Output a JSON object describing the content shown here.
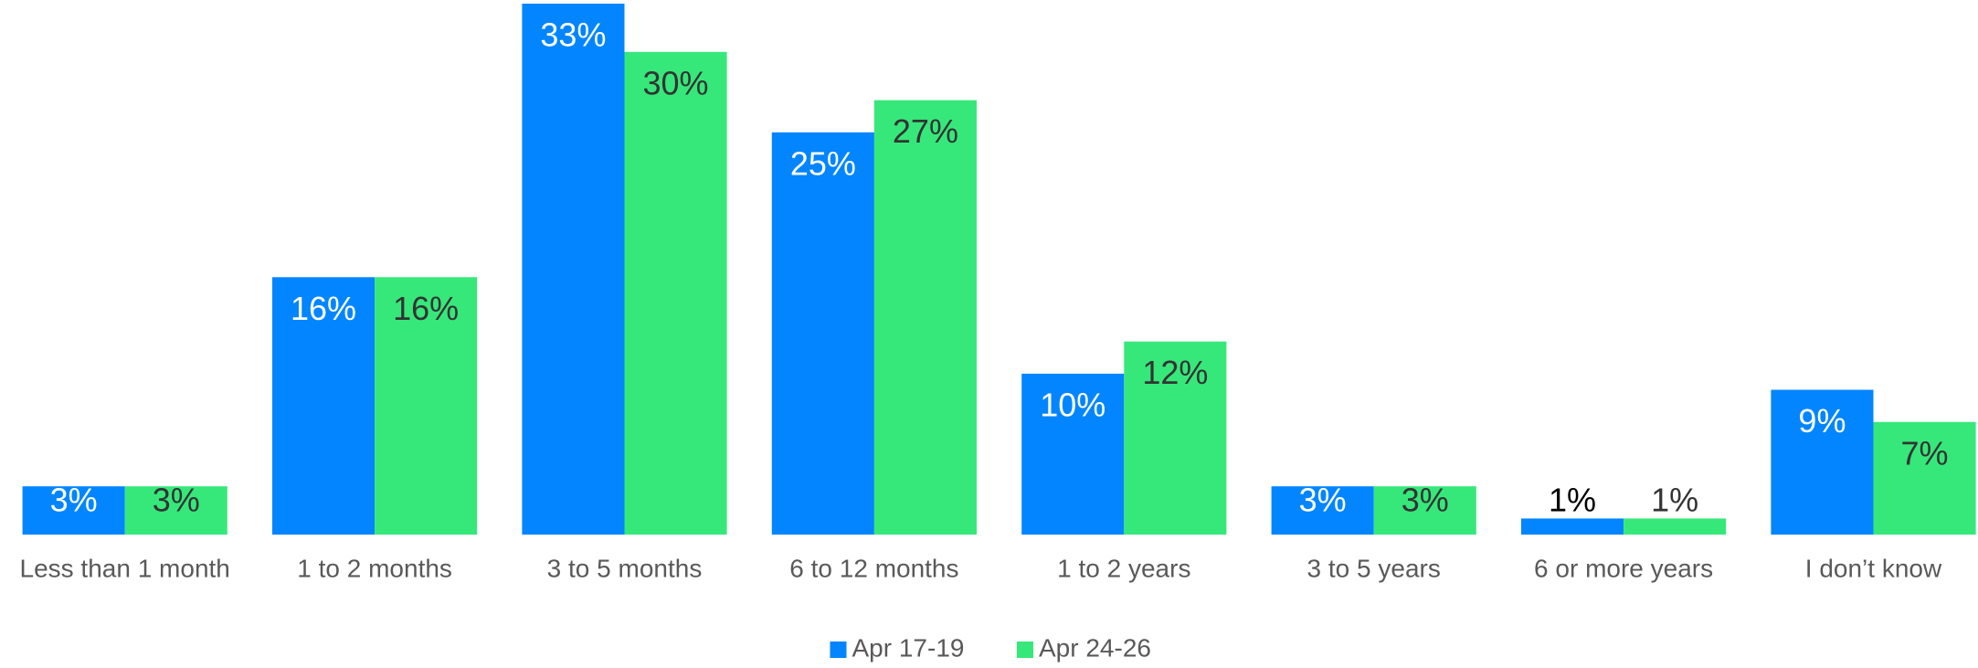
{
  "chart_data": {
    "type": "bar",
    "categories": [
      "Less than 1 month",
      "1 to 2 months",
      "3 to 5 months",
      "6 to 12 months",
      "1 to 2 years",
      "3 to 5 years",
      "6 or more years",
      "I don’t know"
    ],
    "series": [
      {
        "name": "Apr 17-19",
        "color": "#0285ff",
        "values": [
          3,
          16,
          33,
          25,
          10,
          3,
          1,
          9
        ],
        "value_labels": [
          "3%",
          "16%",
          "33%",
          "25%",
          "10%",
          "3%",
          "1%",
          "9%"
        ]
      },
      {
        "name": "Apr 24-26",
        "color": "#36e87a",
        "values": [
          3,
          16,
          30,
          27,
          12,
          3,
          1,
          7
        ],
        "value_labels": [
          "3%",
          "16%",
          "30%",
          "27%",
          "12%",
          "3%",
          "1%",
          "7%"
        ]
      }
    ],
    "ylim": [
      0,
      33
    ],
    "legend": "bottom"
  }
}
